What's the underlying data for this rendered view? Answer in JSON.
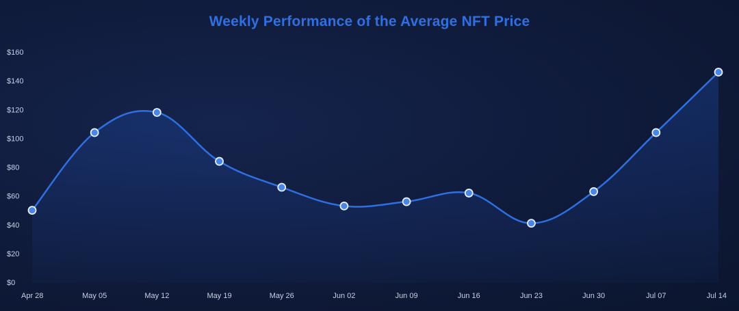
{
  "chart_data": {
    "type": "line",
    "title": "Weekly Performance of the Average NFT Price",
    "xlabel": "",
    "ylabel": "",
    "categories": [
      "Apr 28",
      "May 05",
      "May 12",
      "May 19",
      "May 26",
      "Jun 02",
      "Jun 09",
      "Jun 16",
      "Jun 23",
      "Jun 30",
      "Jul 07",
      "Jul 14"
    ],
    "series": [
      {
        "values": [
          50,
          104,
          118,
          84,
          66,
          53,
          56,
          62,
          41,
          63,
          104,
          146
        ]
      }
    ],
    "ylim": [
      0,
      160
    ],
    "yticks": [
      0,
      20,
      40,
      60,
      80,
      100,
      120,
      140,
      160
    ],
    "ytick_labels": [
      "$0",
      "$20",
      "$40",
      "$60",
      "$80",
      "$100",
      "$120",
      "$140",
      "$160"
    ],
    "curve": "smooth",
    "area_fill": true,
    "grid": false,
    "legend": "none",
    "colors": {
      "line": "#2f6fe0",
      "marker_fill": "#4a86e8",
      "marker_stroke": "#e8efff",
      "title": "#2f6fe0",
      "area_top": "#1f4fb4",
      "tick_text": "#c7d0e3"
    }
  }
}
